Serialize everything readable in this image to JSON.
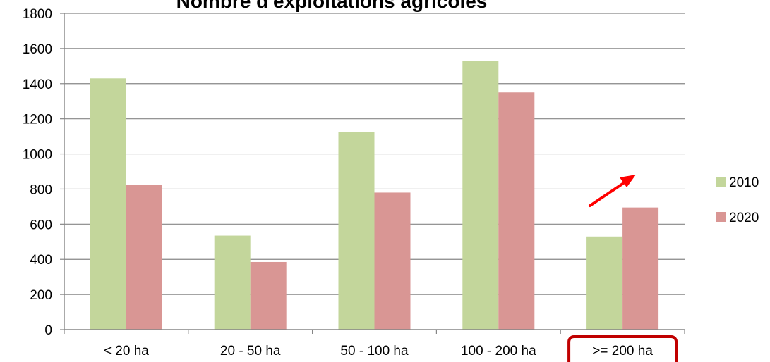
{
  "chart_data": {
    "type": "bar",
    "title": "Nombre d'exploitations agricoles",
    "xlabel": "",
    "ylabel": "",
    "categories": [
      "< 20 ha",
      "20 - 50 ha",
      "50 - 100 ha",
      "100 - 200 ha",
      ">= 200 ha"
    ],
    "series": [
      {
        "name": "2010",
        "values": [
          1430,
          535,
          1125,
          1530,
          530
        ],
        "color": "#c3d69b"
      },
      {
        "name": "2020",
        "values": [
          825,
          385,
          780,
          1350,
          695
        ],
        "color": "#d99694"
      }
    ],
    "ylim": [
      0,
      1800
    ],
    "yticks": [
      0,
      200,
      400,
      600,
      800,
      1000,
      1200,
      1400,
      1600,
      1800
    ],
    "grid": true,
    "legend_position": "right",
    "annotations": {
      "highlighted_category": ">= 200 ha",
      "highlight_color": "#c00000",
      "arrow_color": "#ff0000",
      "arrow_direction": "up-right"
    },
    "colors": {
      "axis": "#868686",
      "grid": "#868686"
    }
  }
}
